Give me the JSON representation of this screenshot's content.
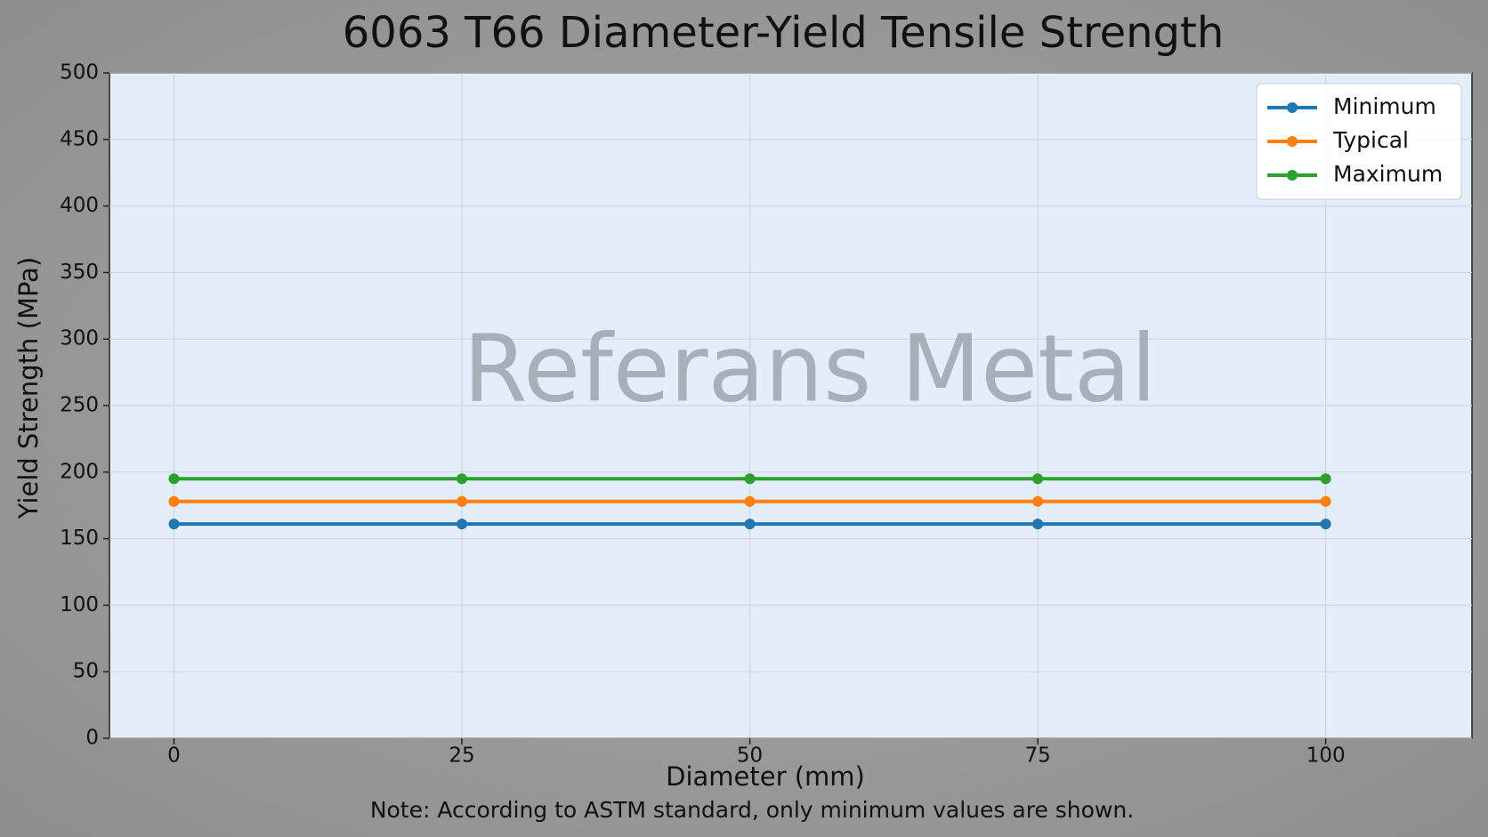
{
  "chart_data": {
    "type": "line",
    "title": "6063 T66 Diameter-Yield Tensile Strength",
    "x_label": "Diameter (mm)",
    "y_label": "Yield Strength (MPa)",
    "note": "Note: According to ASTM standard, only minimum values are shown.",
    "watermark": "Referans Metal",
    "x": [
      0,
      25,
      50,
      75,
      100
    ],
    "series": [
      {
        "name": "Minimum",
        "color": "#1f77b4",
        "values": [
          161,
          161,
          161,
          161,
          161
        ]
      },
      {
        "name": "Typical",
        "color": "#ff7f0e",
        "values": [
          178,
          178,
          178,
          178,
          178
        ]
      },
      {
        "name": "Maximum",
        "color": "#2ca02c",
        "values": [
          195,
          195,
          195,
          195,
          195
        ]
      }
    ],
    "xlim": [
      -5.6,
      112.7
    ],
    "ylim": [
      0,
      500
    ],
    "xticks": [
      0,
      25,
      50,
      75,
      100
    ],
    "yticks": [
      0,
      50,
      100,
      150,
      200,
      250,
      300,
      350,
      400,
      450,
      500
    ],
    "grid": true,
    "legend": "upper-right"
  }
}
